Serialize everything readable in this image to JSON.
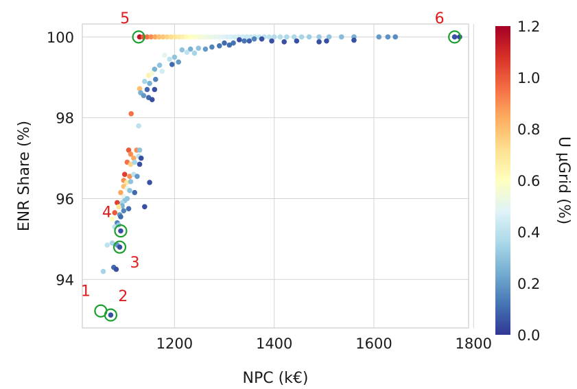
{
  "chart_data": {
    "type": "scatter",
    "title": "",
    "xlabel": "NPC (k€)",
    "ylabel": "ENR Share (%)",
    "colorbar_label": "U µGrid (%)",
    "xlim": [
      1015,
      1790
    ],
    "ylim": [
      92.8,
      100.32
    ],
    "xticks": [
      1200,
      1400,
      1600,
      1800
    ],
    "yticks": [
      94,
      96,
      98,
      100
    ],
    "colorbar_range": [
      0.0,
      1.2
    ],
    "colorbar_ticks": [
      "0.0",
      "0.2",
      "0.4",
      "0.6",
      "0.8",
      "1.0",
      "1.2"
    ],
    "colormap": [
      "#313695",
      "#4575b4",
      "#74add1",
      "#abd9e9",
      "#e0f3f8",
      "#ffffbf",
      "#fee090",
      "#fdae61",
      "#f46d43",
      "#d73027",
      "#a50026"
    ],
    "grid": true,
    "point_columns": [
      "npc",
      "enr_share",
      "u_microgrid"
    ],
    "points": [
      [
        1130,
        100,
        1.15
      ],
      [
        1137,
        100,
        1.0
      ],
      [
        1145,
        100,
        0.95
      ],
      [
        1153,
        100,
        0.9
      ],
      [
        1161,
        100,
        0.85
      ],
      [
        1169,
        100,
        0.8
      ],
      [
        1177,
        100,
        0.78
      ],
      [
        1185,
        100,
        0.75
      ],
      [
        1193,
        100,
        0.72
      ],
      [
        1201,
        100,
        0.7
      ],
      [
        1209,
        100,
        0.68
      ],
      [
        1217,
        100,
        0.65
      ],
      [
        1225,
        100,
        0.62
      ],
      [
        1233,
        100,
        0.6
      ],
      [
        1241,
        100,
        0.58
      ],
      [
        1249,
        100,
        0.56
      ],
      [
        1257,
        100,
        0.55
      ],
      [
        1265,
        100,
        0.53
      ],
      [
        1273,
        100,
        0.52
      ],
      [
        1281,
        100,
        0.5
      ],
      [
        1289,
        100,
        0.5
      ],
      [
        1297,
        100,
        0.48
      ],
      [
        1305,
        100,
        0.47
      ],
      [
        1313,
        100,
        0.46
      ],
      [
        1321,
        100,
        0.45
      ],
      [
        1329,
        100,
        0.45
      ],
      [
        1337,
        100,
        0.44
      ],
      [
        1345,
        100,
        0.43
      ],
      [
        1353,
        100,
        0.43
      ],
      [
        1361,
        100,
        0.42
      ],
      [
        1370,
        100,
        0.42
      ],
      [
        1380,
        100,
        0.4
      ],
      [
        1390,
        100,
        0.4
      ],
      [
        1400,
        100,
        0.38
      ],
      [
        1412,
        100,
        0.38
      ],
      [
        1425,
        100,
        0.36
      ],
      [
        1440,
        100,
        0.36
      ],
      [
        1455,
        100,
        0.35
      ],
      [
        1470,
        100,
        0.33
      ],
      [
        1490,
        100,
        0.32
      ],
      [
        1510,
        100,
        0.3
      ],
      [
        1535,
        100,
        0.28
      ],
      [
        1560,
        100,
        0.25
      ],
      [
        1610,
        100,
        0.2
      ],
      [
        1628,
        100,
        0.18
      ],
      [
        1643,
        100,
        0.17
      ],
      [
        1762,
        100,
        0.05
      ],
      [
        1772,
        100,
        0.03
      ],
      [
        1330,
        99.93,
        0.05
      ],
      [
        1350,
        99.9,
        0.08
      ],
      [
        1375,
        99.95,
        0.05
      ],
      [
        1395,
        99.9,
        0.05
      ],
      [
        1420,
        99.88,
        0.05
      ],
      [
        1445,
        99.9,
        0.05
      ],
      [
        1490,
        99.88,
        0.05
      ],
      [
        1505,
        99.9,
        0.05
      ],
      [
        1560,
        99.92,
        0.05
      ],
      [
        1300,
        99.85,
        0.1
      ],
      [
        1318,
        99.85,
        0.12
      ],
      [
        1340,
        99.9,
        0.12
      ],
      [
        1360,
        99.95,
        0.15
      ],
      [
        1215,
        99.68,
        0.3
      ],
      [
        1232,
        99.7,
        0.25
      ],
      [
        1248,
        99.72,
        0.3
      ],
      [
        1262,
        99.7,
        0.2
      ],
      [
        1275,
        99.75,
        0.15
      ],
      [
        1290,
        99.78,
        0.12
      ],
      [
        1310,
        99.8,
        0.1
      ],
      [
        1225,
        99.62,
        0.4
      ],
      [
        1240,
        99.6,
        0.35
      ],
      [
        1180,
        99.55,
        0.5
      ],
      [
        1190,
        99.45,
        0.4
      ],
      [
        1200,
        99.5,
        0.3
      ],
      [
        1208,
        99.38,
        0.2
      ],
      [
        1195,
        99.32,
        0.1
      ],
      [
        1170,
        99.3,
        0.3
      ],
      [
        1160,
        99.2,
        0.25
      ],
      [
        1175,
        99.15,
        0.45
      ],
      [
        1148,
        99.05,
        0.65
      ],
      [
        1155,
        99.1,
        0.55
      ],
      [
        1140,
        98.9,
        0.35
      ],
      [
        1150,
        98.85,
        0.25
      ],
      [
        1162,
        98.95,
        0.15
      ],
      [
        1130,
        98.72,
        0.8
      ],
      [
        1145,
        98.7,
        0.1
      ],
      [
        1160,
        98.7,
        0.05
      ],
      [
        1132,
        98.62,
        0.25
      ],
      [
        1138,
        98.55,
        0.2
      ],
      [
        1148,
        98.5,
        0.1
      ],
      [
        1155,
        98.45,
        0.05
      ],
      [
        1113,
        98.1,
        0.95
      ],
      [
        1128,
        97.8,
        0.4
      ],
      [
        1108,
        97.2,
        1.0
      ],
      [
        1112,
        97.1,
        0.9
      ],
      [
        1118,
        97.0,
        0.85
      ],
      [
        1124,
        97.2,
        0.9
      ],
      [
        1128,
        97.05,
        0.4
      ],
      [
        1130,
        97.2,
        0.3
      ],
      [
        1133,
        97.0,
        0.05
      ],
      [
        1105,
        96.9,
        0.95
      ],
      [
        1112,
        96.85,
        0.75
      ],
      [
        1120,
        96.9,
        0.35
      ],
      [
        1130,
        96.85,
        0.05
      ],
      [
        1100,
        96.6,
        1.05
      ],
      [
        1110,
        96.55,
        0.9
      ],
      [
        1118,
        96.6,
        0.4
      ],
      [
        1125,
        96.55,
        0.2
      ],
      [
        1098,
        96.45,
        0.9
      ],
      [
        1104,
        96.4,
        0.7
      ],
      [
        1112,
        96.42,
        0.3
      ],
      [
        1098,
        96.3,
        0.8
      ],
      [
        1105,
        96.25,
        0.5
      ],
      [
        1110,
        96.2,
        0.3
      ],
      [
        1120,
        96.15,
        0.1
      ],
      [
        1150,
        96.4,
        0.05
      ],
      [
        1092,
        96.15,
        0.85
      ],
      [
        1098,
        96.05,
        0.5
      ],
      [
        1105,
        96.0,
        0.3
      ],
      [
        1100,
        95.95,
        0.3
      ],
      [
        1095,
        95.9,
        0.35
      ],
      [
        1095,
        95.82,
        0.25
      ],
      [
        1108,
        95.75,
        0.1
      ],
      [
        1085,
        95.9,
        1.05
      ],
      [
        1088,
        95.8,
        0.7
      ],
      [
        1080,
        95.65,
        1.0
      ],
      [
        1090,
        95.6,
        0.2
      ],
      [
        1098,
        95.7,
        0.15
      ],
      [
        1092,
        95.55,
        0.1
      ],
      [
        1140,
        95.8,
        0.05
      ],
      [
        1075,
        95.5,
        0.6
      ],
      [
        1085,
        95.4,
        0.15
      ],
      [
        1080,
        95.3,
        0.4
      ],
      [
        1088,
        95.35,
        0.3
      ],
      [
        1092,
        95.2,
        0.05
      ],
      [
        1065,
        94.85,
        0.4
      ],
      [
        1075,
        94.9,
        0.35
      ],
      [
        1085,
        94.85,
        0.2
      ],
      [
        1090,
        94.8,
        0.05
      ],
      [
        1078,
        94.3,
        0.1
      ],
      [
        1083,
        94.25,
        0.05
      ],
      [
        1057,
        94.2,
        0.35
      ],
      [
        1072,
        93.12,
        0.05
      ]
    ],
    "highlighted_points": [
      {
        "label": "1",
        "x": 1052,
        "y": 93.22
      },
      {
        "label": "2",
        "x": 1072,
        "y": 93.12
      },
      {
        "label": "3",
        "x": 1090,
        "y": 94.8
      },
      {
        "label": "4",
        "x": 1092,
        "y": 95.2
      },
      {
        "label": "5",
        "x": 1128,
        "y": 100
      },
      {
        "label": "6",
        "x": 1762,
        "y": 100
      }
    ]
  }
}
